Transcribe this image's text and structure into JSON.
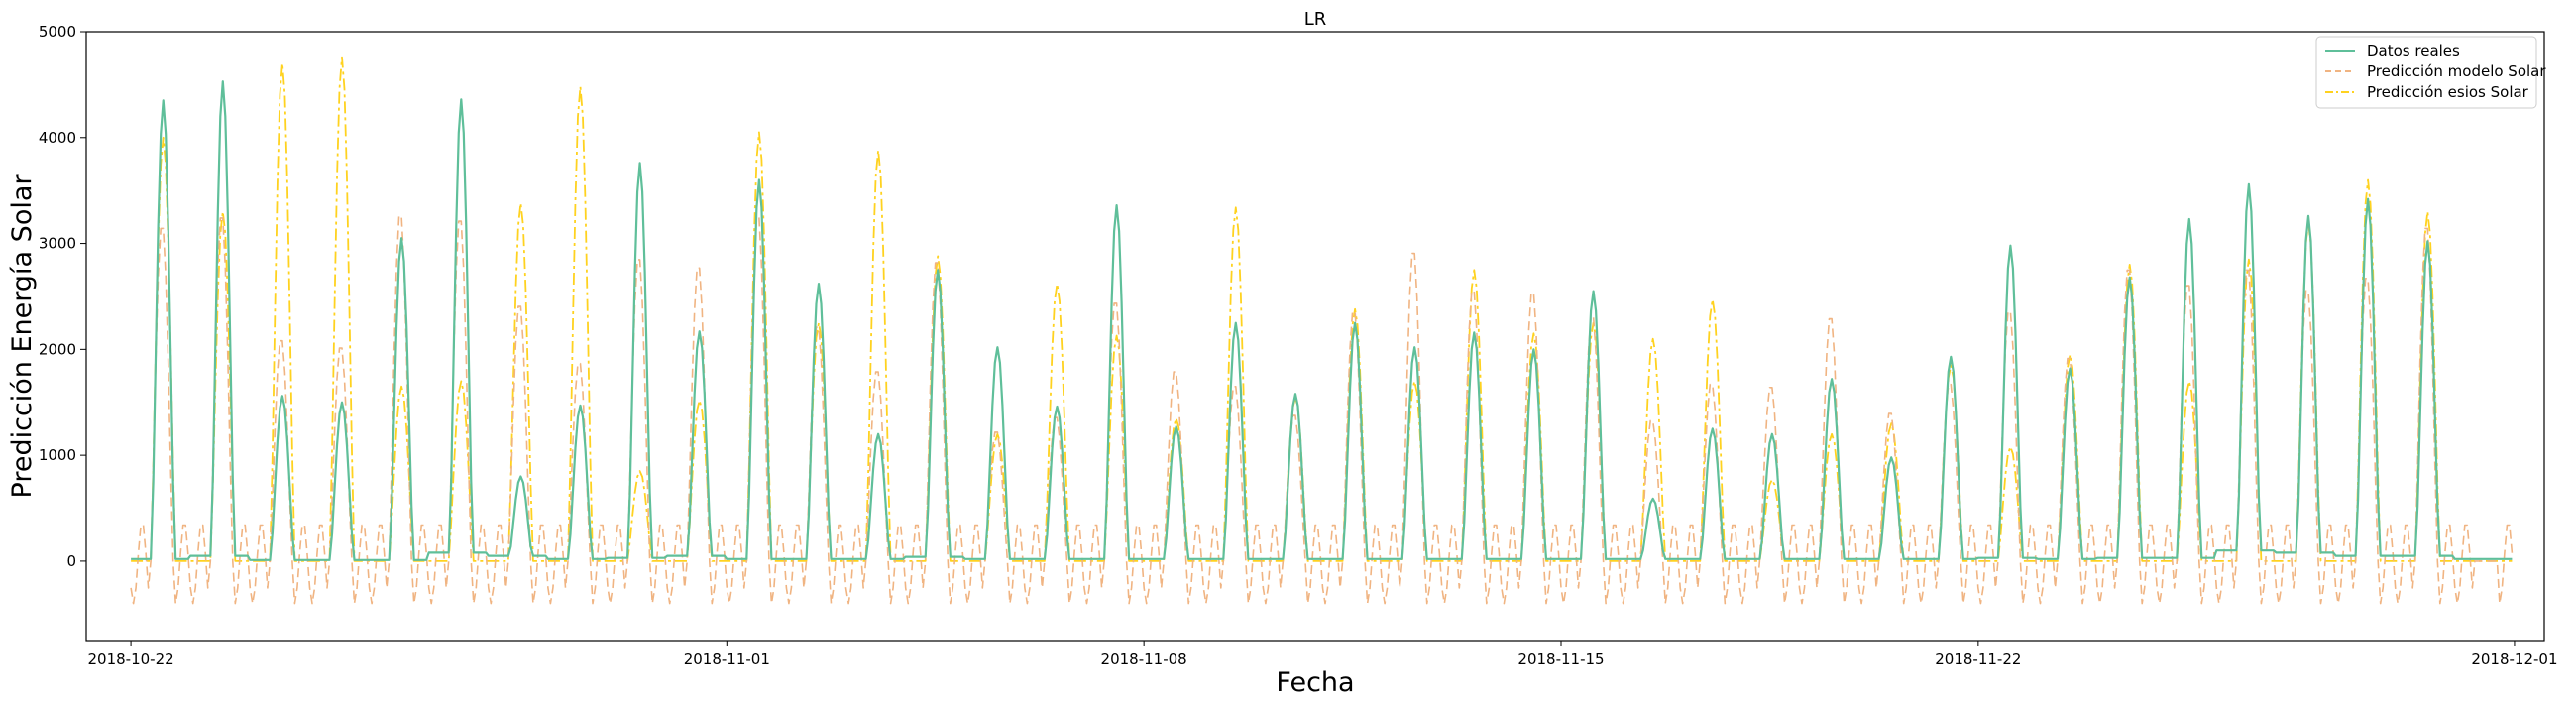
{
  "chart_data": {
    "type": "line",
    "title": "LR",
    "xlabel": "Fecha",
    "ylabel": "Predicción Energía Solar",
    "xlim": [
      "2018-10-21T06:00",
      "2018-12-01T12:00"
    ],
    "ylim": [
      -750,
      5000
    ],
    "xticks": [
      "2018-10-22",
      "2018-11-01",
      "2018-11-08",
      "2018-11-15",
      "2018-11-22",
      "2018-12-01"
    ],
    "yticks": [
      0,
      1000,
      2000,
      3000,
      4000,
      5000
    ],
    "data_range": [
      "2018-10-22T00:00",
      "2018-11-30T23:00"
    ],
    "grid": false,
    "legend_position": "top-right",
    "series": [
      {
        "name": "Datos reales",
        "color": "#5fbf9a",
        "style": "solid",
        "daily_peaks": [
          4350,
          4530,
          1560,
          1500,
          3050,
          4360,
          800,
          1470,
          3760,
          2170,
          3600,
          2620,
          1200,
          2750,
          2020,
          1460,
          3360,
          1270,
          2250,
          1580,
          2250,
          2020,
          2160,
          2000,
          2550,
          590,
          1250,
          1200,
          1720,
          980,
          1930,
          2980,
          1820,
          2680,
          3230,
          3560,
          3260,
          3420,
          3020
        ],
        "night_values": [
          20,
          50,
          10,
          10,
          10,
          80,
          50,
          20,
          30,
          50,
          20,
          20,
          20,
          40,
          20,
          20,
          20,
          20,
          20,
          20,
          20,
          20,
          20,
          20,
          20,
          20,
          20,
          20,
          20,
          20,
          20,
          30,
          20,
          30,
          30,
          100,
          80,
          50,
          50
        ]
      },
      {
        "name": "Predicción modelo Solar",
        "color": "#f0b482",
        "style": "dashed",
        "daily_peaks": [
          3200,
          3300,
          2120,
          2050,
          3320,
          3270,
          2450,
          1900,
          2900,
          2820,
          3300,
          2250,
          1820,
          2870,
          1240,
          1380,
          2480,
          1820,
          1680,
          1400,
          2400,
          2960,
          2600,
          2580,
          2350,
          1350,
          1700,
          1670,
          2330,
          1420,
          1700,
          2400,
          1950,
          2800,
          2650,
          2800,
          2600,
          2720,
          3200
        ],
        "night_dip": -400,
        "night_bump": 380
      },
      {
        "name": "Predicción esios Solar",
        "color": "#ffd21f",
        "style": "dashdot",
        "daily_peaks": [
          4000,
          3300,
          4700,
          4760,
          1650,
          1700,
          3380,
          4480,
          850,
          1520,
          4050,
          2250,
          3880,
          2880,
          1200,
          2620,
          2130,
          1350,
          3340,
          1550,
          2380,
          1700,
          2750,
          2150,
          2250,
          2100,
          2470,
          770,
          1200,
          1300,
          1850,
          1080,
          1950,
          2800,
          1700,
          2850,
          3200,
          3600,
          3300
        ]
      }
    ]
  }
}
